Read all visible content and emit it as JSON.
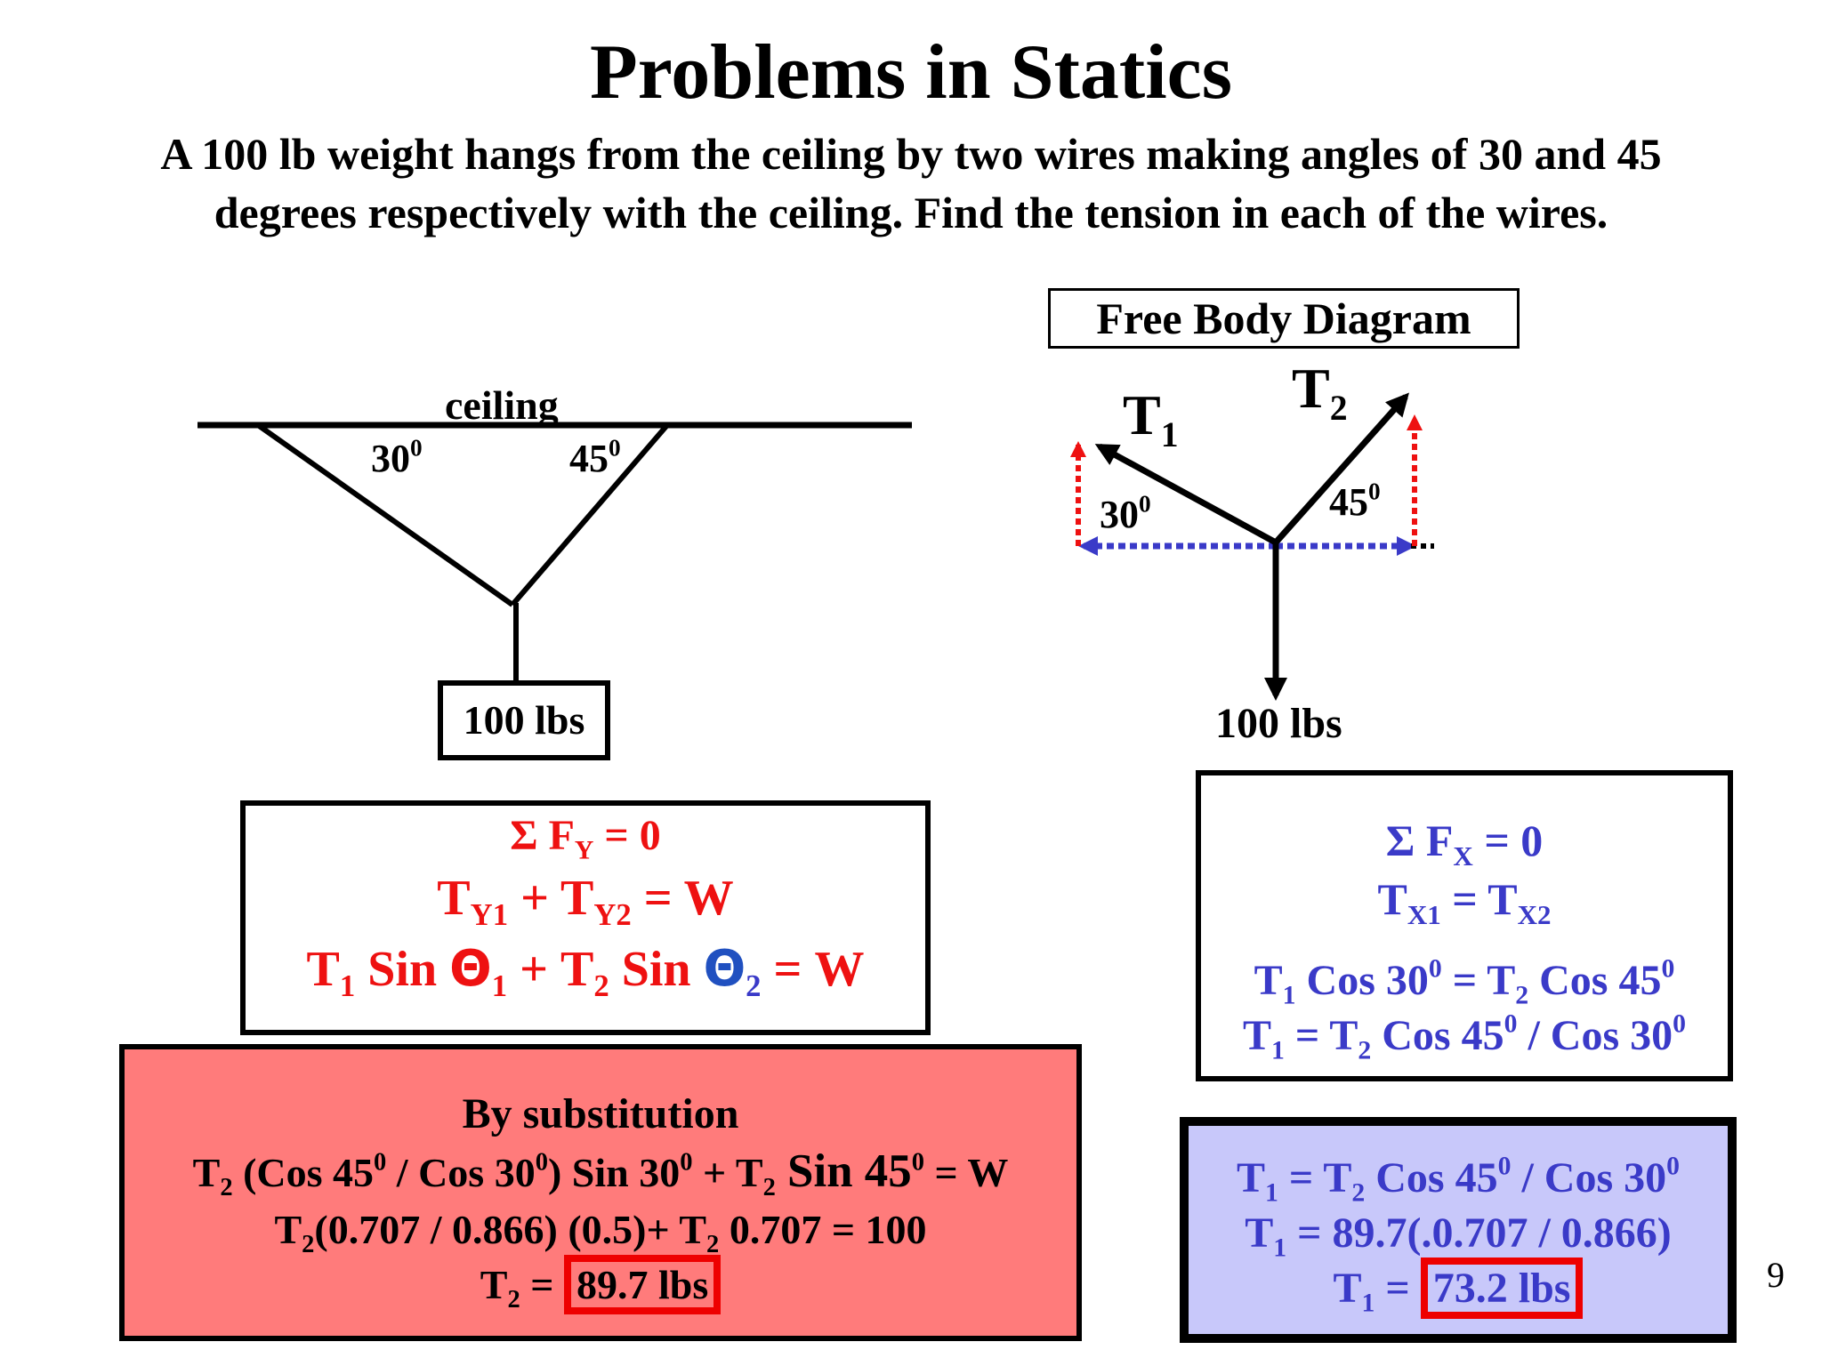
{
  "title": "Problems in Statics",
  "problem": {
    "line1": "A 100 lb weight hangs from the ceiling by two wires making angles of 30 and 45",
    "line2": "degrees respectively with the ceiling. Find the tension in each of the wires."
  },
  "setup": {
    "ceiling_label": "ceiling",
    "angle_left": "30",
    "angle_right": "45",
    "weight_label": "100 lbs"
  },
  "fbd": {
    "title": "Free Body Diagram",
    "t1_label": "T",
    "t1_sub": "1",
    "t2_label": "T",
    "t2_sub": "2",
    "angle_left": "30",
    "angle_right": "45",
    "weight_label": "100 lbs"
  },
  "sum_fy": {
    "line1": "Σ F",
    "line1_sub": "Y",
    "line1_rest": " = 0",
    "line2": "T",
    "line2_sub1": "Y1",
    "line2_mid": " + T",
    "line2_sub2": "Y2",
    "line2_rest": " = W",
    "line3_a": "T",
    "line3_sub1": "1",
    "line3_b": " Sin ",
    "theta": "Θ",
    "theta_sub1": "1",
    "line3_c": " + T",
    "line3_sub2": "2",
    "line3_d": " Sin ",
    "theta_sub2": "2",
    "line3_e": " = W"
  },
  "sum_fx": {
    "line1": "Σ F",
    "line1_sub": "X",
    "line1_rest": " = 0",
    "line2": "T",
    "line2_sub1": "X1",
    "line2_mid": "  =  T",
    "line2_sub2": "X2",
    "line3_a": "T",
    "line3_sub1": "1",
    "line3_b": " Cos 30",
    "line3_sup1": "0",
    "line3_c": " = T",
    "line3_sub2": "2",
    "line3_d": " Cos 45",
    "line3_sup2": "0",
    "line4_a": "T",
    "line4_sub1": "1",
    "line4_b": " = T",
    "line4_sub2": "2",
    "line4_c": " Cos 45",
    "line4_sup1": "0",
    "line4_d": " / Cos 30",
    "line4_sup2": "0"
  },
  "substitution": {
    "heading": "By substitution",
    "l1_a": "T",
    "l1_sub": "2",
    "l1_b": " (Cos 45",
    "l1_sup1": "0",
    "l1_c": " / Cos 30",
    "l1_sup2": "0",
    "l1_d": ") Sin 30",
    "l1_sup3": "0",
    "l1_e": " + T",
    "l1_sub2": "2",
    "l1_f": " Sin 45",
    "l1_sup4": "0",
    "l1_g": " = W",
    "l2_a": "T",
    "l2_sub": "2",
    "l2_b": "(0.707 / 0.866) (0.5)+ T",
    "l2_sub2": "2",
    "l2_c": " 0.707 = 100",
    "l3_a": "T",
    "l3_sub": "2",
    "l3_b": " = ",
    "l3_answer": "89.7 lbs"
  },
  "solution": {
    "l1_a": "T",
    "l1_sub": "1",
    "l1_b": " = T",
    "l1_sub2": "2",
    "l1_c": " Cos 45",
    "l1_sup1": "0",
    "l1_d": " / Cos 30",
    "l1_sup2": "0",
    "l2_a": "T",
    "l2_sub": "1",
    "l2_b": " = 89.7(.0.707 / 0.866)",
    "l3_a": "T",
    "l3_sub": "1",
    "l3_b": " = ",
    "l3_answer": "73.2 lbs"
  },
  "page_number": "9",
  "colors": {
    "red": "#ee1111",
    "blue": "#3a3ac8",
    "subst_bg": "#ff7b7b",
    "solution_bg": "#c8c8fa",
    "highlight": "#ee0000"
  }
}
